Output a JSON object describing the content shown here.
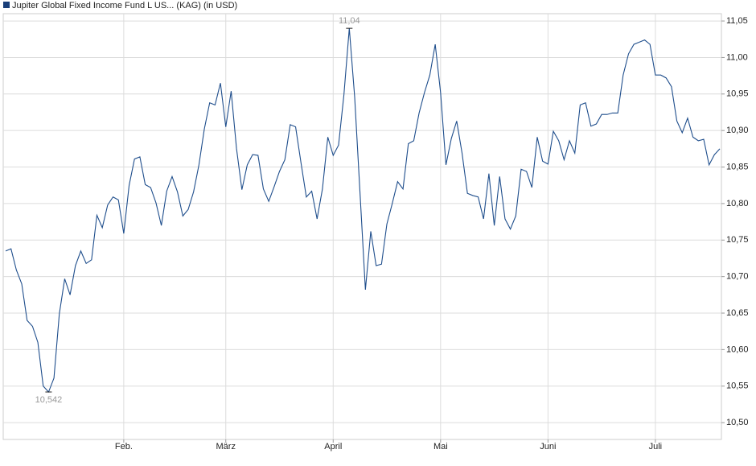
{
  "chart_data": {
    "type": "line",
    "legend": "Jupiter Global Fixed Income Fund L US... (KAG) (in USD)",
    "categories": [
      null,
      null,
      null,
      null,
      null,
      null,
      null,
      null,
      null,
      null,
      null,
      null,
      null,
      null,
      null,
      null,
      null,
      null,
      null,
      null,
      null,
      null,
      "Feb.",
      null,
      null,
      null,
      null,
      null,
      null,
      null,
      null,
      null,
      null,
      null,
      null,
      null,
      null,
      null,
      null,
      null,
      null,
      "März",
      null,
      null,
      null,
      null,
      null,
      null,
      null,
      null,
      null,
      null,
      null,
      null,
      null,
      null,
      null,
      null,
      null,
      null,
      null,
      "April",
      null,
      null,
      null,
      null,
      null,
      null,
      null,
      null,
      null,
      null,
      null,
      null,
      null,
      null,
      null,
      null,
      null,
      null,
      null,
      "Mai",
      null,
      null,
      null,
      null,
      null,
      null,
      null,
      null,
      null,
      null,
      null,
      null,
      null,
      null,
      null,
      null,
      null,
      null,
      null,
      "Juni",
      null,
      null,
      null,
      null,
      null,
      null,
      null,
      null,
      null,
      null,
      null,
      null,
      null,
      null,
      null,
      null,
      null,
      null,
      null,
      "Juli",
      null,
      null,
      null,
      null,
      null,
      null,
      null,
      null,
      null,
      null,
      null,
      null
    ],
    "series": [
      {
        "name": "Jupiter Global Fixed Income Fund L US... (KAG) (in USD)",
        "color": "#1f4e8c",
        "values": [
          10.735,
          10.738,
          10.709,
          10.69,
          10.64,
          10.632,
          10.61,
          10.55,
          10.542,
          10.561,
          10.649,
          10.697,
          10.675,
          10.715,
          10.735,
          10.718,
          10.723,
          10.784,
          10.767,
          10.798,
          10.809,
          10.805,
          10.759,
          10.825,
          10.861,
          10.864,
          10.826,
          10.822,
          10.801,
          10.77,
          10.817,
          10.837,
          10.816,
          10.783,
          10.792,
          10.816,
          10.853,
          10.902,
          10.938,
          10.935,
          10.965,
          10.905,
          10.954,
          10.875,
          10.819,
          10.853,
          10.867,
          10.866,
          10.82,
          10.803,
          10.823,
          10.844,
          10.86,
          10.908,
          10.905,
          10.856,
          10.809,
          10.817,
          10.779,
          10.82,
          10.891,
          10.866,
          10.88,
          10.949,
          11.04,
          10.946,
          10.814,
          10.682,
          10.762,
          10.715,
          10.717,
          10.772,
          10.8,
          10.83,
          10.82,
          10.882,
          10.886,
          10.924,
          10.952,
          10.976,
          11.018,
          10.952,
          10.853,
          10.889,
          10.913,
          10.869,
          10.814,
          10.811,
          10.809,
          10.779,
          10.841,
          10.77,
          10.837,
          10.779,
          10.765,
          10.783,
          10.847,
          10.844,
          10.822,
          10.891,
          10.858,
          10.854,
          10.899,
          10.886,
          10.86,
          10.886,
          10.869,
          10.935,
          10.938,
          10.906,
          10.909,
          10.922,
          10.922,
          10.924,
          10.924,
          10.976,
          11.005,
          11.018,
          11.021,
          11.024,
          11.018,
          10.976,
          10.976,
          10.972,
          10.96,
          10.913,
          10.897,
          10.917,
          10.891,
          10.886,
          10.888,
          10.853,
          10.867,
          10.875
        ]
      }
    ],
    "annotations": [
      {
        "label": "11,04",
        "value": 11.04
      },
      {
        "label": "10,542",
        "value": 10.542
      }
    ],
    "ylim": [
      10.477,
      11.06
    ],
    "yticks": [
      {
        "value": 10.5,
        "label": "10,50"
      },
      {
        "value": 10.55,
        "label": "10,55"
      },
      {
        "value": 10.6,
        "label": "10,60"
      },
      {
        "value": 10.65,
        "label": "10,65"
      },
      {
        "value": 10.7,
        "label": "10,70"
      },
      {
        "value": 10.75,
        "label": "10,75"
      },
      {
        "value": 10.8,
        "label": "10,80"
      },
      {
        "value": 10.85,
        "label": "10,85"
      },
      {
        "value": 10.9,
        "label": "10,90"
      },
      {
        "value": 10.95,
        "label": "10,95"
      },
      {
        "value": 11.0,
        "label": "11,00"
      },
      {
        "value": 11.05,
        "label": "11,05"
      }
    ],
    "grid": true
  }
}
